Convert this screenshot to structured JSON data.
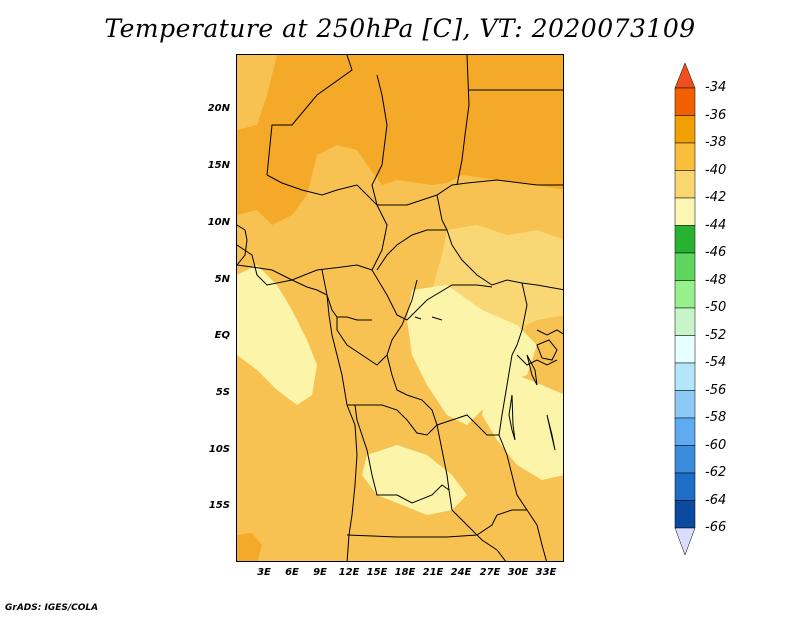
{
  "title": "Temperature at 250hPa [C], VT: 2020073109",
  "credit": "GrADS: IGES/COLA",
  "y_ticks": [
    "20N",
    "15N",
    "10N",
    "5N",
    "EQ",
    "5S",
    "10S",
    "15S"
  ],
  "x_ticks": [
    "3E",
    "6E",
    "9E",
    "12E",
    "15E",
    "18E",
    "21E",
    "24E",
    "27E",
    "30E",
    "33E"
  ],
  "colorbar": {
    "labels": [
      "-34",
      "-36",
      "-38",
      "-40",
      "-42",
      "-44",
      "-46",
      "-48",
      "-50",
      "-52",
      "-54",
      "-56",
      "-58",
      "-60",
      "-62",
      "-64",
      "-66"
    ],
    "colors": [
      "#fa3c3c",
      "#f06000",
      "#f0a000",
      "#fabe3c",
      "#fad76e",
      "#fcf6b4",
      "#27b232",
      "#5ed65e",
      "#96f08c",
      "#c8f5c8",
      "#e6ffff",
      "#b4e6fa",
      "#8ccaf5",
      "#5faaf0",
      "#3c8cdc",
      "#1e6ec8",
      "#0a4ba0",
      "#00007f"
    ],
    "top_color": "#f0501e",
    "bottom_color": "#dcdcff"
  },
  "field_colors": {
    "t36": "#f5a928",
    "t38": "#f7c251",
    "t40": "#fad775",
    "t42": "#fcf4a8"
  }
}
